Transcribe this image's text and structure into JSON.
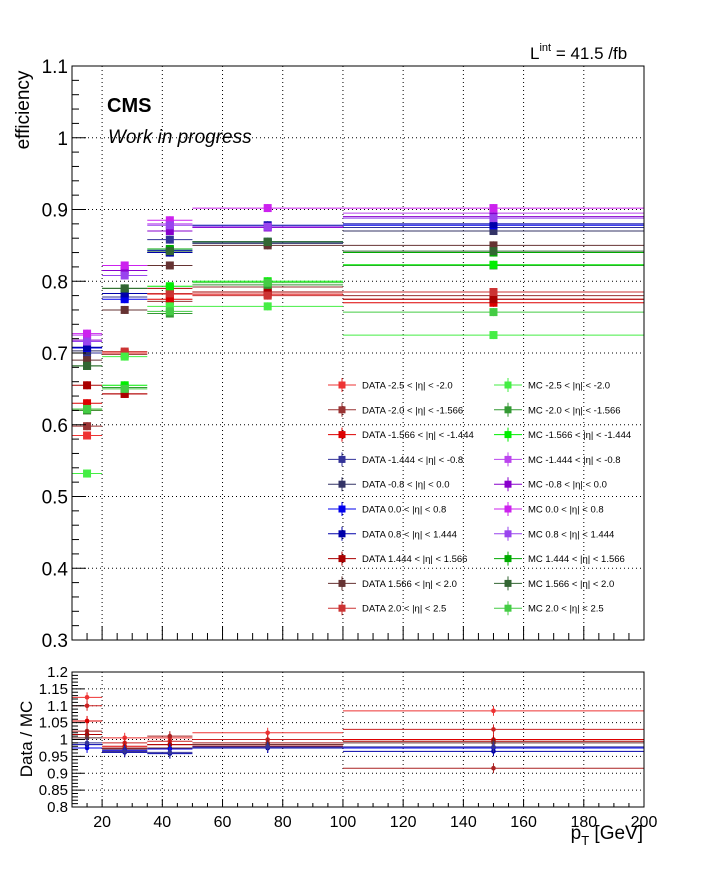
{
  "lumi": {
    "prefix": "L",
    "sup": "int",
    "value": " = 41.5 /fb"
  },
  "experiment": "CMS",
  "status": "Work in progress",
  "chart_data": [
    {
      "type": "scatter",
      "ylabel": "efficiency",
      "xlim": [
        10,
        200
      ],
      "ylim": [
        0.3,
        1.1
      ],
      "yticks": [
        "0.3",
        "0.4",
        "0.5",
        "0.6",
        "0.7",
        "0.8",
        "0.9",
        "1",
        "1.1"
      ],
      "x_bins": [
        [
          10,
          20
        ],
        [
          20,
          35
        ],
        [
          35,
          50
        ],
        [
          50,
          100
        ],
        [
          100,
          200
        ]
      ],
      "grid": true,
      "legend_placement": "bottom-right",
      "series": [
        {
          "name": "DATA -2.5 < |η| < -2.0",
          "color": "#ee3333",
          "values": [
            0.585,
            0.7,
            0.782,
            0.785,
            0.775
          ]
        },
        {
          "name": "DATA -2.0 < |η| < -1.566",
          "color": "#993333",
          "values": [
            0.598,
            0.698,
            0.772,
            0.792,
            0.78
          ]
        },
        {
          "name": "DATA -1.566 < |η| < -1.444",
          "color": "#dd0000",
          "values": [
            0.63,
            0.643,
            0.775,
            0.782,
            0.77
          ]
        },
        {
          "name": "DATA -1.444 < |η| < -0.8",
          "color": "#333399",
          "values": [
            0.7,
            0.778,
            0.858,
            0.853,
            0.875
          ]
        },
        {
          "name": "DATA -0.8 < |η| < 0.0",
          "color": "#333366",
          "values": [
            0.703,
            0.783,
            0.84,
            0.853,
            0.87
          ]
        },
        {
          "name": "DATA 0.0 < |η| < 0.8",
          "color": "#0000ee",
          "values": [
            0.707,
            0.775,
            0.843,
            0.855,
            0.878
          ]
        },
        {
          "name": "DATA 0.8 < |η| < 1.444",
          "color": "#0000aa",
          "values": [
            0.708,
            0.783,
            0.84,
            0.878,
            0.88
          ]
        },
        {
          "name": "DATA 1.444 < |η| < 1.566",
          "color": "#aa0000",
          "values": [
            0.655,
            0.643,
            0.79,
            0.785,
            0.775
          ]
        },
        {
          "name": "DATA 1.566 < |η| < 2.0",
          "color": "#663333",
          "values": [
            0.69,
            0.76,
            0.822,
            0.85,
            0.85
          ]
        },
        {
          "name": "DATA 2.0 < |η| < 2.5",
          "color": "#cc3333",
          "values": [
            0.62,
            0.702,
            0.783,
            0.78,
            0.785
          ]
        },
        {
          "name": "MC -2.5 < |η| < -2.0",
          "color": "#44ee44",
          "values": [
            0.532,
            0.695,
            0.765,
            0.765,
            0.725
          ]
        },
        {
          "name": "MC -2.0 < |η| < -1.566",
          "color": "#339933",
          "values": [
            0.62,
            0.652,
            0.755,
            0.795,
            0.822
          ]
        },
        {
          "name": "MC -1.566 < |η| < -1.444",
          "color": "#00ee00",
          "values": [
            0.622,
            0.655,
            0.793,
            0.8,
            0.823
          ]
        },
        {
          "name": "MC -1.444 < |η| < -0.8",
          "color": "#bb44ee",
          "values": [
            0.725,
            0.815,
            0.88,
            0.875,
            0.895
          ]
        },
        {
          "name": "MC -0.8 < |η| < 0.0",
          "color": "#8800cc",
          "values": [
            0.718,
            0.815,
            0.87,
            0.875,
            0.89
          ]
        },
        {
          "name": "MC 0.0 < |η| < 0.8",
          "color": "#cc22ee",
          "values": [
            0.727,
            0.822,
            0.885,
            0.902,
            0.902
          ]
        },
        {
          "name": "MC 0.8 < |η| < 1.444",
          "color": "#9944ee",
          "values": [
            0.716,
            0.808,
            0.878,
            0.876,
            0.888
          ]
        },
        {
          "name": "MC 1.444 < |η| < 1.566",
          "color": "#00aa00",
          "values": [
            0.682,
            0.79,
            0.845,
            0.855,
            0.84
          ]
        },
        {
          "name": "MC 1.566 < |η| < 2.0",
          "color": "#336633",
          "values": [
            0.682,
            0.79,
            0.842,
            0.855,
            0.842
          ]
        },
        {
          "name": "MC 2.0 < |η| < 2.5",
          "color": "#44cc44",
          "values": [
            0.622,
            0.65,
            0.758,
            0.798,
            0.757
          ]
        }
      ]
    },
    {
      "type": "scatter",
      "ylabel": "Data / MC",
      "xlabel": "p_T [GeV]",
      "xlabel_main": "p",
      "xlabel_sub": "T",
      "xlabel_unit": " [GeV]",
      "xlim": [
        10,
        200
      ],
      "ylim": [
        0.8,
        1.2
      ],
      "xticks": [
        "20",
        "40",
        "60",
        "80",
        "100",
        "120",
        "140",
        "160",
        "180",
        "200"
      ],
      "yticks": [
        "0.8",
        "0.85",
        "0.9",
        "0.95",
        "1",
        "1.05",
        "1.1",
        "1.15",
        "1.2"
      ],
      "grid": true,
      "series": [
        {
          "color": "#ee3333",
          "values": [
            1.125,
            1.005,
            1.005,
            1.02,
            1.085
          ]
        },
        {
          "color": "#cc2222",
          "values": [
            1.1,
            0.99,
            0.995,
            1.0,
            1.03
          ]
        },
        {
          "color": "#dd0000",
          "values": [
            1.055,
            0.98,
            0.985,
            0.985,
            1.0
          ]
        },
        {
          "color": "#aa2222",
          "values": [
            1.025,
            0.975,
            1.01,
            0.99,
            0.915
          ]
        },
        {
          "color": "#aa0000",
          "values": [
            1.015,
            0.965,
            0.985,
            0.98,
            0.995
          ]
        },
        {
          "color": "#663333",
          "values": [
            1.005,
            0.972,
            0.975,
            0.985,
            0.99
          ]
        },
        {
          "color": "#0000ee",
          "values": [
            0.975,
            0.968,
            0.972,
            0.975,
            0.975
          ]
        },
        {
          "color": "#0000aa",
          "values": [
            0.985,
            0.962,
            0.958,
            0.975,
            0.965
          ]
        },
        {
          "color": "#333399",
          "values": [
            0.99,
            0.965,
            0.962,
            0.978,
            0.978
          ]
        }
      ]
    }
  ]
}
